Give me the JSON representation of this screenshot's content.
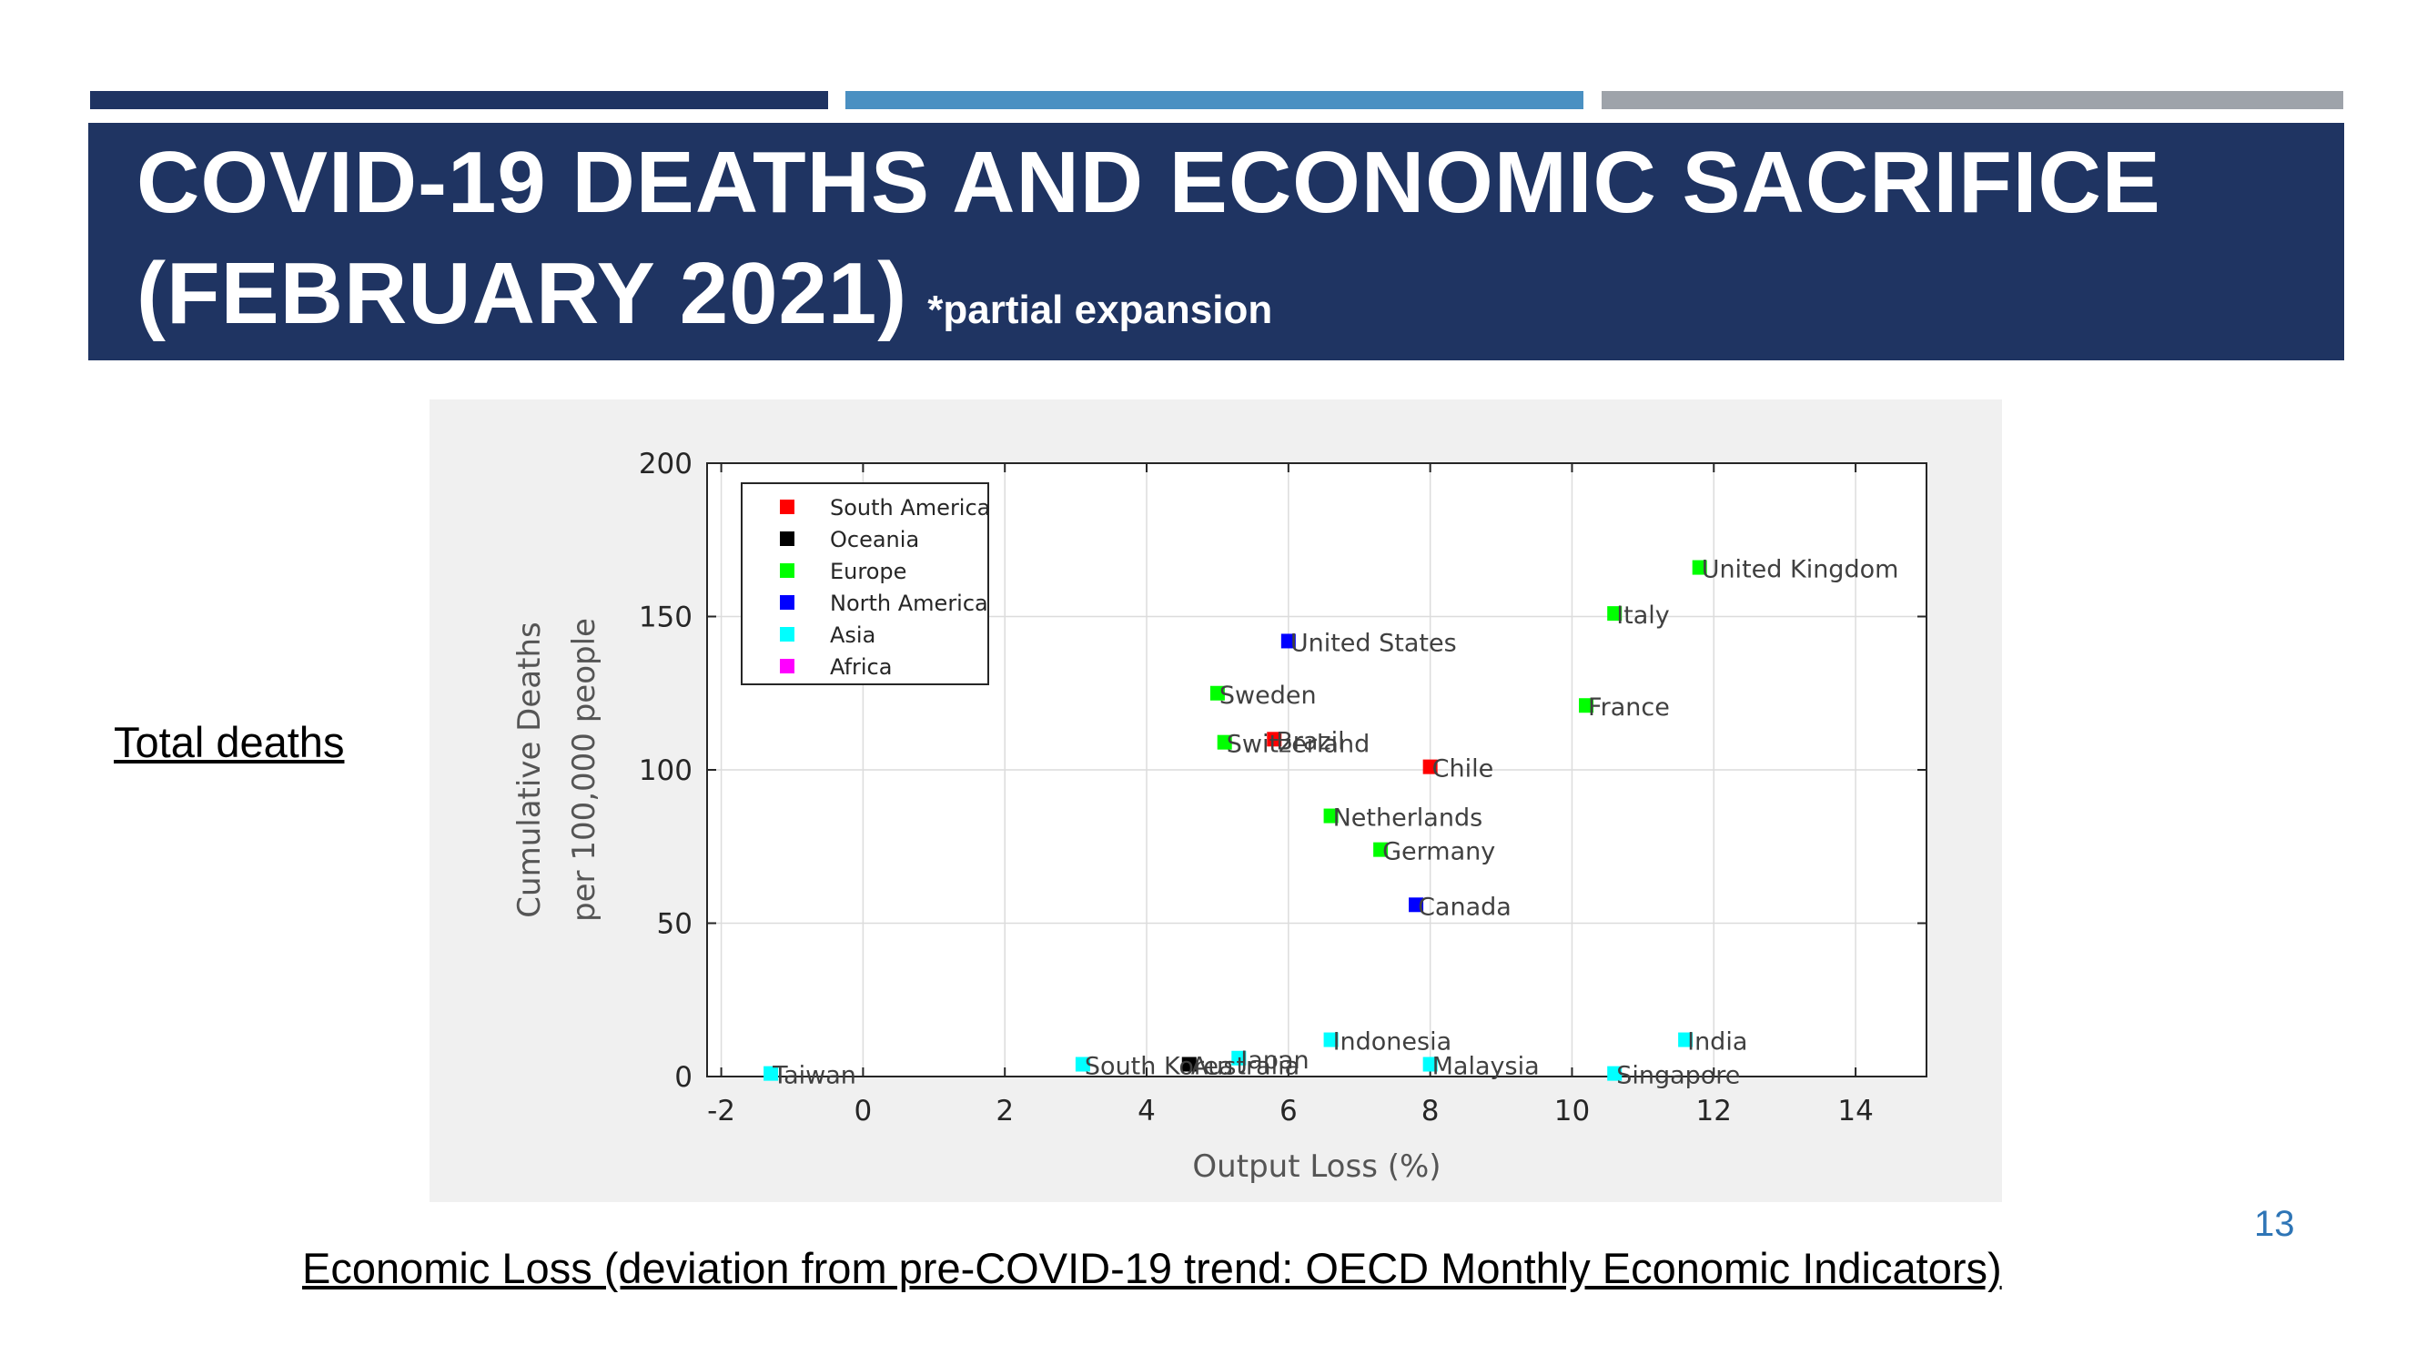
{
  "header": {
    "title_line1": "COVID-19 DEATHS AND ECONOMIC SACRIFICE",
    "title_line2": "(FEBRUARY 2021)",
    "title_note": "*partial expansion",
    "accent_colors": [
      "#1f3462",
      "#4a90c2",
      "#9ea3aa"
    ]
  },
  "side_label": "Total deaths",
  "bottom_caption": "Economic Loss (deviation from pre-COVID-19 trend: OECD Monthly Economic Indicators)",
  "page_number": "13",
  "chart_data": {
    "type": "scatter",
    "xlabel": "Output Loss (%)",
    "ylabel_line1": "Cumulative Deaths",
    "ylabel_line2": "per 100,000 people",
    "xlim": [
      -2.2,
      15
    ],
    "ylim": [
      0,
      200
    ],
    "xticks": [
      -2,
      0,
      2,
      4,
      6,
      8,
      10,
      12,
      14
    ],
    "yticks": [
      0,
      50,
      100,
      150,
      200
    ],
    "grid": true,
    "legend_position": "top-left",
    "legend": [
      {
        "name": "South America",
        "color": "#ff0000"
      },
      {
        "name": "Oceania",
        "color": "#000000"
      },
      {
        "name": "Europe",
        "color": "#00ff00"
      },
      {
        "name": "North America",
        "color": "#0000ff"
      },
      {
        "name": "Asia",
        "color": "#00ffff"
      },
      {
        "name": "Africa",
        "color": "#ff00ff"
      }
    ],
    "points": [
      {
        "label": "United Kingdom",
        "x": 11.8,
        "y": 166,
        "region": "Europe"
      },
      {
        "label": "Italy",
        "x": 10.6,
        "y": 151,
        "region": "Europe"
      },
      {
        "label": "United States",
        "x": 6.0,
        "y": 142,
        "region": "North America"
      },
      {
        "label": "Sweden",
        "x": 5.0,
        "y": 125,
        "region": "Europe"
      },
      {
        "label": "France",
        "x": 10.2,
        "y": 121,
        "region": "Europe"
      },
      {
        "label": "Brazil",
        "x": 5.8,
        "y": 110,
        "region": "South America"
      },
      {
        "label": "Switzerland",
        "x": 5.1,
        "y": 109,
        "region": "Europe"
      },
      {
        "label": "Chile",
        "x": 8.0,
        "y": 101,
        "region": "South America"
      },
      {
        "label": "Netherlands",
        "x": 6.6,
        "y": 85,
        "region": "Europe"
      },
      {
        "label": "Germany",
        "x": 7.3,
        "y": 74,
        "region": "Europe"
      },
      {
        "label": "Canada",
        "x": 7.8,
        "y": 56,
        "region": "North America"
      },
      {
        "label": "Indonesia",
        "x": 6.6,
        "y": 12,
        "region": "Asia"
      },
      {
        "label": "India",
        "x": 11.6,
        "y": 12,
        "region": "Asia"
      },
      {
        "label": "Japan",
        "x": 5.3,
        "y": 6,
        "region": "Asia"
      },
      {
        "label": "Australia",
        "x": 4.6,
        "y": 4,
        "region": "Oceania"
      },
      {
        "label": "South Korea",
        "x": 3.1,
        "y": 4,
        "region": "Asia"
      },
      {
        "label": "Malaysia",
        "x": 8.0,
        "y": 4,
        "region": "Asia"
      },
      {
        "label": "Taiwan",
        "x": -1.3,
        "y": 1,
        "region": "Asia"
      },
      {
        "label": "Singapore",
        "x": 10.6,
        "y": 1,
        "region": "Asia"
      }
    ]
  }
}
